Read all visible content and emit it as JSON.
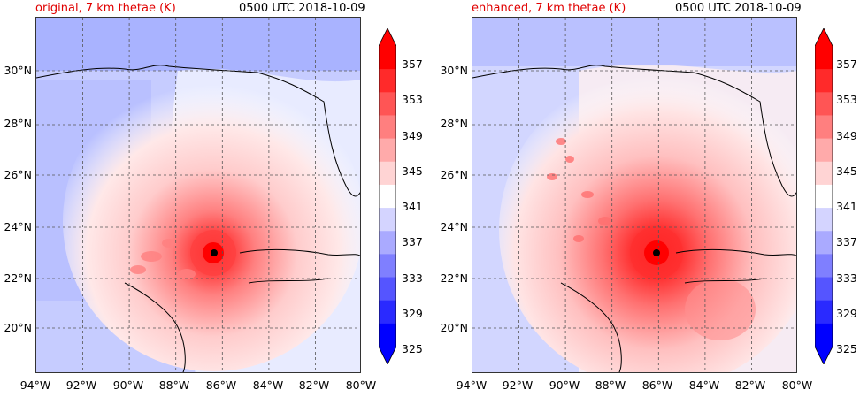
{
  "panels": [
    {
      "title_left": "original, 7 km thetae (K)",
      "title_right": "0500 UTC 2018-10-09"
    },
    {
      "title_left": "enhanced, 7 km thetae (K)",
      "title_right": "0500 UTC 2018-10-09"
    }
  ],
  "lon_labels": [
    "94°W",
    "92°W",
    "90°W",
    "88°W",
    "86°W",
    "84°W",
    "82°W",
    "80°W"
  ],
  "lat_labels": [
    "30°N",
    "28°N",
    "26°N",
    "24°N",
    "22°N",
    "20°N"
  ],
  "colorbar_labels": [
    "357",
    "353",
    "349",
    "345",
    "341",
    "337",
    "333",
    "329",
    "325"
  ],
  "colorbar_colors": [
    "#ff0000",
    "#ff2a2a",
    "#ff5555",
    "#ff7f7f",
    "#ffaaaa",
    "#ffd4d4",
    "#ffffff",
    "#d4d4ff",
    "#aaaaff",
    "#7f7fff",
    "#5555ff",
    "#2a2aff",
    "#0000ff"
  ],
  "storm_center": {
    "lon": -86.3,
    "lat": 23.0
  }
}
